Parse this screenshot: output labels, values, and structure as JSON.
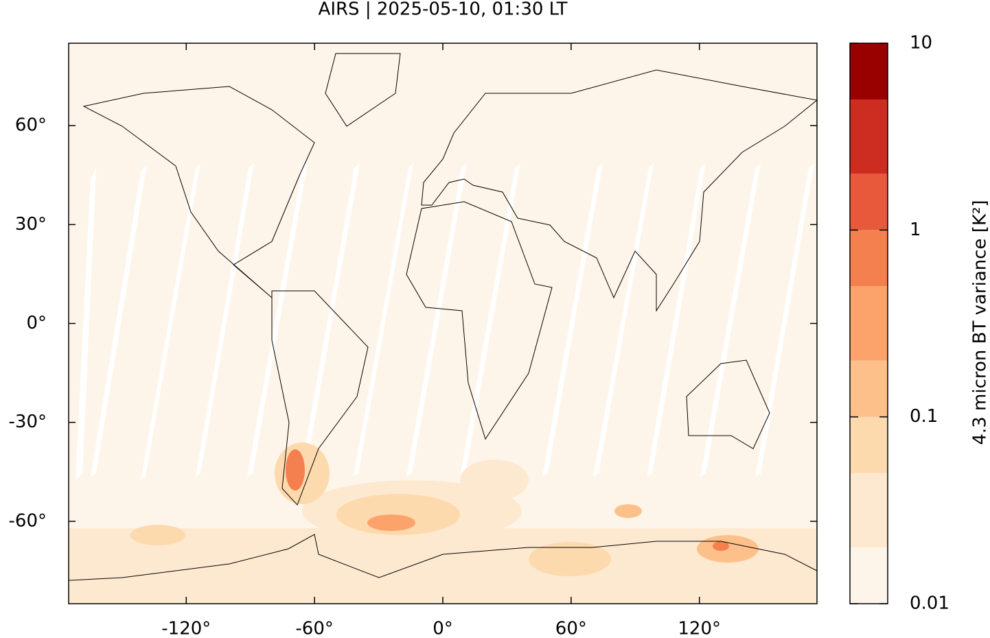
{
  "chart_data": {
    "type": "map",
    "title": "AIRS | 2025-05-10, 01:30 LT",
    "xlim": [
      -175,
      175
    ],
    "ylim": [
      -85,
      85
    ],
    "xticks": [
      {
        "value": -120,
        "label": "-120°"
      },
      {
        "value": -60,
        "label": "-60°"
      },
      {
        "value": 0,
        "label": "0°"
      },
      {
        "value": 60,
        "label": "60°"
      },
      {
        "value": 120,
        "label": "120°"
      }
    ],
    "yticks": [
      {
        "value": 60,
        "label": "60°"
      },
      {
        "value": 30,
        "label": "30°"
      },
      {
        "value": 0,
        "label": "0°"
      },
      {
        "value": -30,
        "label": "-30°"
      },
      {
        "value": -60,
        "label": "-60°"
      }
    ],
    "colorbar": {
      "label": "4.3 micron BT variance [K²]",
      "log": true,
      "lim": [
        0.01,
        10
      ],
      "ticks": [
        0.01,
        0.1,
        1,
        10
      ],
      "levels": [
        0.01,
        0.02,
        0.05,
        0.1,
        0.2,
        0.5,
        1,
        2,
        5,
        10
      ],
      "colors": [
        "#fef5ea",
        "#fde9d0",
        "#fdd9ae",
        "#fdc08a",
        "#fca36c",
        "#f5804f",
        "#e8593b",
        "#cc2d20",
        "#990000"
      ]
    }
  }
}
